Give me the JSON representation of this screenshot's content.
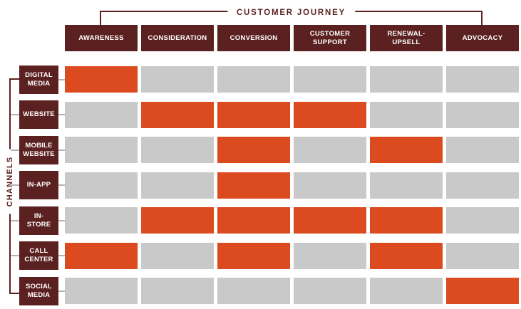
{
  "title": "CUSTOMER JOURNEY",
  "side_label": "CHANNELS",
  "colors": {
    "maroon": "#5B2120",
    "orange": "#DC4B1F",
    "inactive_gray": "#C9C9C9",
    "connector_gray": "#B3B3B3",
    "background": "#FFFFFF",
    "label_text": "#FFFFFF"
  },
  "stages": [
    "AWARENESS",
    "CONSIDERATION",
    "CONVERSION",
    "CUSTOMER\nSUPPORT",
    "RENEWAL-\nUPSELL",
    "ADVOCACY"
  ],
  "channels": [
    {
      "label": "DIGITAL\nMEDIA",
      "active": [
        1,
        0,
        0,
        0,
        0,
        0
      ]
    },
    {
      "label": "WEBSITE",
      "active": [
        0,
        1,
        1,
        1,
        0,
        0
      ]
    },
    {
      "label": "MOBILE\nWEBSITE",
      "active": [
        0,
        0,
        1,
        0,
        1,
        0
      ]
    },
    {
      "label": "IN-APP",
      "active": [
        0,
        0,
        1,
        0,
        0,
        0
      ]
    },
    {
      "label": "IN-\nSTORE",
      "active": [
        0,
        1,
        1,
        1,
        1,
        0
      ]
    },
    {
      "label": "CALL\nCENTER",
      "active": [
        1,
        0,
        1,
        0,
        1,
        0
      ]
    },
    {
      "label": "SOCIAL\nMEDIA",
      "active": [
        0,
        0,
        0,
        0,
        0,
        1
      ]
    }
  ],
  "chart_data": {
    "type": "heatmap",
    "title": "CUSTOMER JOURNEY",
    "columns": [
      "AWARENESS",
      "CONSIDERATION",
      "CONVERSION",
      "CUSTOMER SUPPORT",
      "RENEWAL-UPSELL",
      "ADVOCACY"
    ],
    "rows": [
      "DIGITAL MEDIA",
      "WEBSITE",
      "MOBILE WEBSITE",
      "IN-APP",
      "IN-STORE",
      "CALL CENTER",
      "SOCIAL MEDIA"
    ],
    "values": [
      [
        1,
        0,
        0,
        0,
        0,
        0
      ],
      [
        0,
        1,
        1,
        1,
        0,
        0
      ],
      [
        0,
        0,
        1,
        0,
        1,
        0
      ],
      [
        0,
        0,
        1,
        0,
        0,
        0
      ],
      [
        0,
        1,
        1,
        1,
        1,
        0
      ],
      [
        1,
        0,
        1,
        0,
        1,
        0
      ],
      [
        0,
        0,
        0,
        0,
        0,
        1
      ]
    ],
    "legend": {
      "active_color": "#DC4B1F",
      "inactive_color": "#C9C9C9"
    }
  }
}
